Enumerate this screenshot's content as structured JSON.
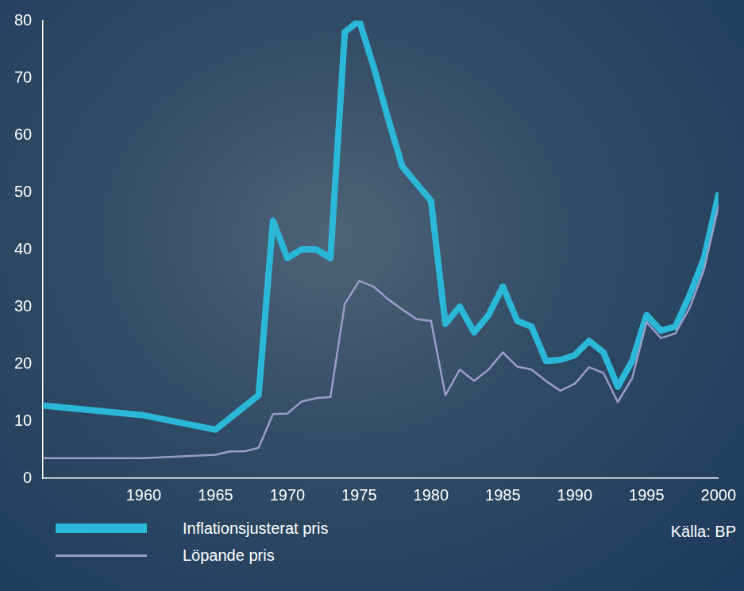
{
  "chart_data": {
    "type": "line",
    "x": [
      1953,
      1960,
      1965,
      1966,
      1967,
      1968,
      1969,
      1970,
      1971,
      1972,
      1973,
      1974,
      1975,
      1976,
      1977,
      1978,
      1979,
      1980,
      1981,
      1982,
      1983,
      1984,
      1985,
      1986,
      1987,
      1988,
      1989,
      1990,
      1991,
      1992,
      1993,
      1994,
      1995,
      1996,
      1997,
      1998,
      1999,
      2000
    ],
    "series": [
      {
        "name": "Inflationsjusterat pris",
        "color": "#2bb8d8",
        "values": [
          12.7,
          11,
          8.5,
          10.5,
          12.5,
          14.5,
          45,
          38.5,
          40,
          40,
          38.5,
          78,
          80,
          72,
          63,
          54.5,
          51.5,
          48.5,
          27,
          30,
          25.5,
          28.5,
          33.5,
          27.5,
          26.5,
          20.5,
          20.7,
          21.5,
          24,
          22,
          16,
          20.5,
          28.5,
          25.8,
          26.5,
          32,
          38.5,
          49.5
        ]
      },
      {
        "name": "Löpande pris",
        "color": "#9a9cc8",
        "values": [
          3.5,
          3.5,
          4.1,
          4.7,
          4.7,
          5.3,
          11.2,
          11.3,
          13.4,
          14,
          14.2,
          30.5,
          34.5,
          33.5,
          31.3,
          29.5,
          27.8,
          27.5,
          14.5,
          19,
          17,
          19,
          22,
          19.5,
          19,
          17,
          15.3,
          16.5,
          19.4,
          18.4,
          13.3,
          17.5,
          27.3,
          24.5,
          25.3,
          29.8,
          36.5,
          47.5
        ]
      }
    ],
    "xlim": [
      1953,
      2000
    ],
    "xticks": [
      1960,
      1965,
      1970,
      1975,
      1980,
      1985,
      1990,
      1995,
      2000
    ],
    "ylim": [
      0,
      80
    ],
    "yticks": [
      0,
      10,
      20,
      30,
      40,
      50,
      60,
      70,
      80
    ],
    "grid": false,
    "legend": "bottom-left",
    "source": "Källa: BP"
  }
}
